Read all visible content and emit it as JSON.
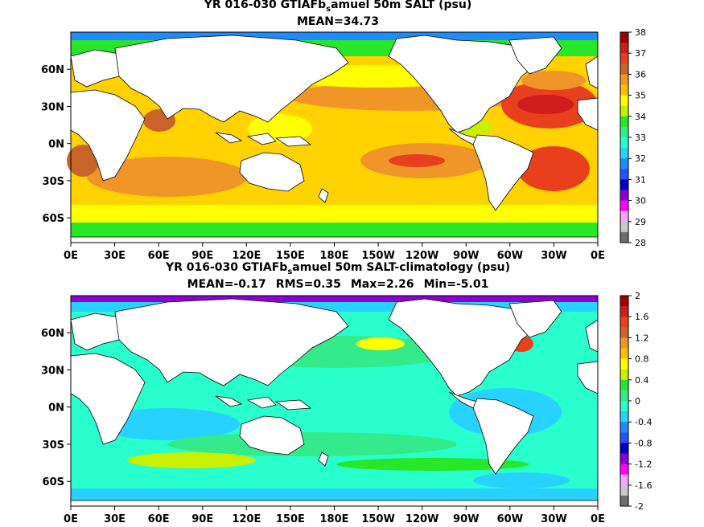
{
  "panels": [
    {
      "title_prefix": "YR 016-030 GTIAFb",
      "title_sub": "s",
      "title_suffix": "amuel 50m SALT (psu)",
      "stats": {
        "mean": "MEAN=34.73"
      },
      "colorbar_labels": [
        "38",
        "37",
        "36",
        "35",
        "34",
        "33",
        "32",
        "31",
        "30",
        "29",
        "28"
      ],
      "colorbar_colors": [
        "#a00000",
        "#d01c1c",
        "#e8401c",
        "#c86428",
        "#f09628",
        "#ffbe00",
        "#ffff00",
        "#c8f000",
        "#28e628",
        "#34eb8c",
        "#28ffcc",
        "#28d2ff",
        "#1e8cff",
        "#2850ff",
        "#0000c8",
        "#8c00d2",
        "#ff00ff",
        "#ffa0ff",
        "#c8c8c8",
        "#6e6e6e"
      ]
    },
    {
      "title_prefix": "YR 016-030 GTIAFb",
      "title_sub": "s",
      "title_suffix": "amuel 50m SALT-climatology (psu)",
      "stats": {
        "mean": "MEAN=-0.17",
        "rms": "RMS=0.35",
        "max": "Max=2.26",
        "min": "Min=-5.01"
      },
      "colorbar_labels": [
        "2",
        "1.6",
        "1.2",
        "0.8",
        "0.4",
        "0",
        "-0.4",
        "-0.8",
        "-1.2",
        "-1.6",
        "-2"
      ],
      "colorbar_colors": [
        "#a00000",
        "#d01c1c",
        "#e8401c",
        "#c86428",
        "#f09628",
        "#ffbe00",
        "#ffff00",
        "#c8f000",
        "#28e628",
        "#34eb8c",
        "#28ffcc",
        "#28d2ff",
        "#1e8cff",
        "#2850ff",
        "#0000c8",
        "#8c00d2",
        "#ff00ff",
        "#ffa0ff",
        "#c8c8c8",
        "#6e6e6e"
      ]
    }
  ],
  "map_axes": {
    "x_ticks": [
      "0E",
      "30E",
      "60E",
      "90E",
      "120E",
      "150E",
      "180E",
      "150W",
      "120W",
      "90W",
      "60W",
      "30W",
      "0E"
    ],
    "y_ticks": [
      "60N",
      "30N",
      "0N",
      "30S",
      "60S"
    ]
  }
}
